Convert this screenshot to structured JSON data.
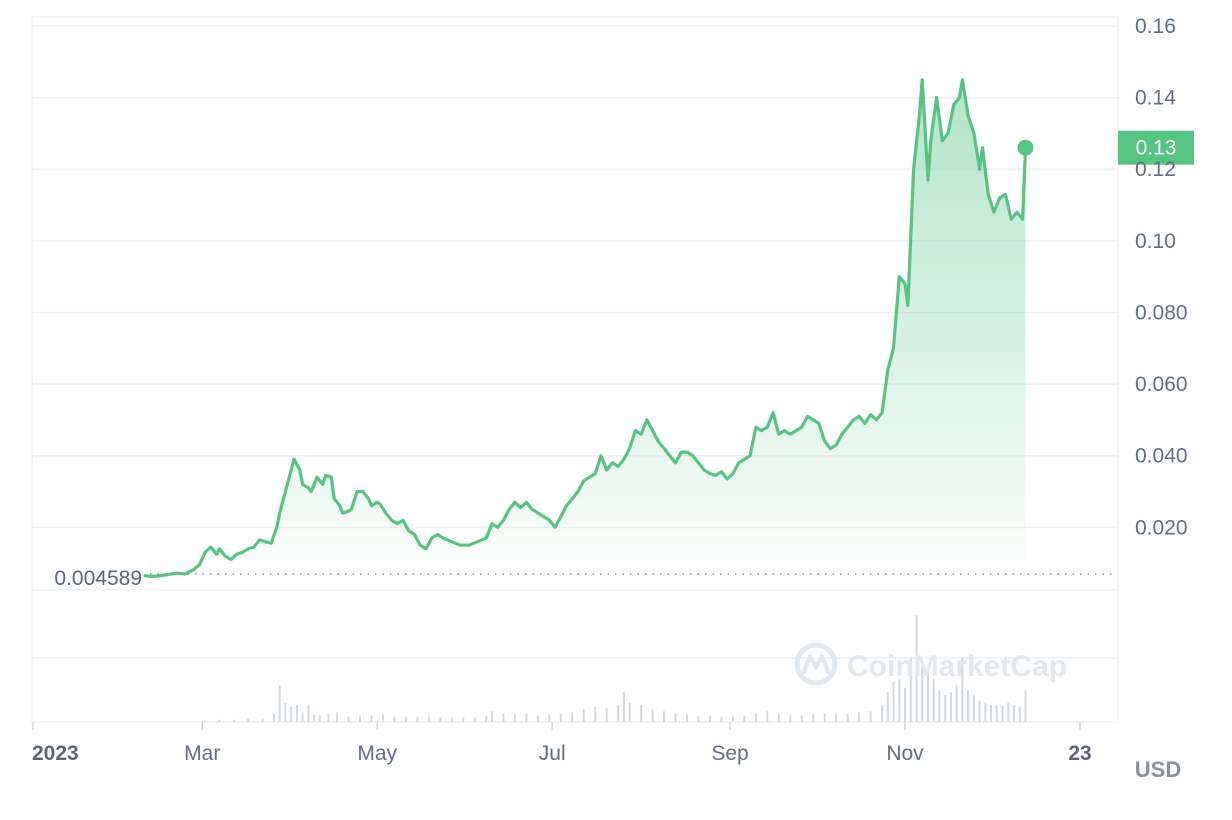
{
  "colors": {
    "line": "#58c483",
    "area_top": "#58c483",
    "grid": "#eff2f5",
    "volume": "#d3d8e0",
    "baseline": "#808a9d",
    "badge": "#58c483"
  },
  "watermark": {
    "text": "CoinMarketCap",
    "icon": "coinmarketcap-logo-icon"
  },
  "chart_data": {
    "type": "area",
    "x_ticks": [
      {
        "label": "2023",
        "day": 0
      },
      {
        "label": "Mar",
        "day": 59
      },
      {
        "label": "May",
        "day": 120
      },
      {
        "label": "Jul",
        "day": 181
      },
      {
        "label": "Sep",
        "day": 243
      },
      {
        "label": "Nov",
        "day": 304
      },
      {
        "label": "23",
        "day": 365
      }
    ],
    "y_ticks": [
      "0.020",
      "0.040",
      "0.060",
      "0.080",
      "0.10",
      "0.12",
      "0.14",
      "0.16"
    ],
    "y_tick_values": [
      0.02,
      0.04,
      0.06,
      0.08,
      0.1,
      0.12,
      0.14,
      0.16
    ],
    "ylim": [
      0.0025,
      0.1625
    ],
    "unit": "USD",
    "start_value_label": "0.004589",
    "current_value_label": "0.13",
    "grid": true,
    "series": [
      {
        "values": [
          [
            39,
            0.0065
          ],
          [
            41,
            0.0063
          ],
          [
            44,
            0.0064
          ],
          [
            47,
            0.0068
          ],
          [
            50,
            0.0072
          ],
          [
            53,
            0.007
          ],
          [
            56,
            0.0082
          ],
          [
            58,
            0.0095
          ],
          [
            60,
            0.013
          ],
          [
            62,
            0.0145
          ],
          [
            64,
            0.0125
          ],
          [
            65,
            0.014
          ],
          [
            67,
            0.012
          ],
          [
            69,
            0.011
          ],
          [
            71,
            0.0125
          ],
          [
            73,
            0.013
          ],
          [
            75,
            0.014
          ],
          [
            77,
            0.0145
          ],
          [
            79,
            0.0165
          ],
          [
            81,
            0.016
          ],
          [
            83,
            0.0155
          ],
          [
            85,
            0.02
          ],
          [
            86,
            0.024
          ],
          [
            88,
            0.03
          ],
          [
            90,
            0.036
          ],
          [
            91,
            0.039
          ],
          [
            93,
            0.036
          ],
          [
            94,
            0.032
          ],
          [
            96,
            0.031
          ],
          [
            97,
            0.03
          ],
          [
            99,
            0.034
          ],
          [
            101,
            0.032
          ],
          [
            102,
            0.0345
          ],
          [
            104,
            0.034
          ],
          [
            105,
            0.028
          ],
          [
            107,
            0.026
          ],
          [
            108,
            0.024
          ],
          [
            110,
            0.0245
          ],
          [
            111,
            0.025
          ],
          [
            113,
            0.03
          ],
          [
            115,
            0.03
          ],
          [
            117,
            0.028
          ],
          [
            118,
            0.026
          ],
          [
            120,
            0.027
          ],
          [
            121,
            0.0265
          ],
          [
            123,
            0.024
          ],
          [
            125,
            0.022
          ],
          [
            127,
            0.021
          ],
          [
            129,
            0.022
          ],
          [
            131,
            0.019
          ],
          [
            133,
            0.018
          ],
          [
            135,
            0.015
          ],
          [
            137,
            0.014
          ],
          [
            139,
            0.017
          ],
          [
            141,
            0.018
          ],
          [
            143,
            0.017
          ],
          [
            146,
            0.016
          ],
          [
            149,
            0.015
          ],
          [
            152,
            0.015
          ],
          [
            155,
            0.016
          ],
          [
            158,
            0.017
          ],
          [
            160,
            0.021
          ],
          [
            162,
            0.02
          ],
          [
            164,
            0.022
          ],
          [
            166,
            0.025
          ],
          [
            168,
            0.027
          ],
          [
            170,
            0.0255
          ],
          [
            172,
            0.027
          ],
          [
            174,
            0.025
          ],
          [
            176,
            0.024
          ],
          [
            178,
            0.023
          ],
          [
            180,
            0.022
          ],
          [
            182,
            0.02
          ],
          [
            184,
            0.023
          ],
          [
            186,
            0.026
          ],
          [
            188,
            0.028
          ],
          [
            190,
            0.03
          ],
          [
            192,
            0.033
          ],
          [
            194,
            0.034
          ],
          [
            196,
            0.035
          ],
          [
            198,
            0.04
          ],
          [
            200,
            0.036
          ],
          [
            202,
            0.038
          ],
          [
            204,
            0.037
          ],
          [
            206,
            0.039
          ],
          [
            208,
            0.042
          ],
          [
            210,
            0.047
          ],
          [
            212,
            0.046
          ],
          [
            214,
            0.05
          ],
          [
            216,
            0.047
          ],
          [
            218,
            0.044
          ],
          [
            220,
            0.042
          ],
          [
            222,
            0.04
          ],
          [
            224,
            0.038
          ],
          [
            226,
            0.041
          ],
          [
            228,
            0.041
          ],
          [
            230,
            0.04
          ],
          [
            232,
            0.038
          ],
          [
            234,
            0.036
          ],
          [
            236,
            0.035
          ],
          [
            238,
            0.0345
          ],
          [
            240,
            0.0355
          ],
          [
            242,
            0.0335
          ],
          [
            244,
            0.035
          ],
          [
            246,
            0.038
          ],
          [
            248,
            0.039
          ],
          [
            250,
            0.04
          ],
          [
            252,
            0.048
          ],
          [
            254,
            0.047
          ],
          [
            256,
            0.048
          ],
          [
            258,
            0.052
          ],
          [
            260,
            0.046
          ],
          [
            262,
            0.047
          ],
          [
            264,
            0.046
          ],
          [
            266,
            0.047
          ],
          [
            268,
            0.048
          ],
          [
            270,
            0.051
          ],
          [
            272,
            0.05
          ],
          [
            274,
            0.049
          ],
          [
            276,
            0.044
          ],
          [
            278,
            0.042
          ],
          [
            280,
            0.043
          ],
          [
            282,
            0.046
          ],
          [
            284,
            0.048
          ],
          [
            286,
            0.05
          ],
          [
            288,
            0.051
          ],
          [
            290,
            0.049
          ],
          [
            292,
            0.0515
          ],
          [
            294,
            0.05
          ],
          [
            296,
            0.052
          ],
          [
            298,
            0.064
          ],
          [
            300,
            0.07
          ],
          [
            302,
            0.09
          ],
          [
            304,
            0.088
          ],
          [
            305,
            0.082
          ],
          [
            307,
            0.12
          ],
          [
            309,
            0.135
          ],
          [
            310,
            0.145
          ],
          [
            312,
            0.117
          ],
          [
            313,
            0.128
          ],
          [
            315,
            0.14
          ],
          [
            317,
            0.128
          ],
          [
            319,
            0.13
          ],
          [
            321,
            0.138
          ],
          [
            323,
            0.14
          ],
          [
            324,
            0.145
          ],
          [
            326,
            0.135
          ],
          [
            328,
            0.13
          ],
          [
            330,
            0.12
          ],
          [
            331,
            0.126
          ],
          [
            333,
            0.113
          ],
          [
            335,
            0.108
          ],
          [
            337,
            0.112
          ],
          [
            339,
            0.113
          ],
          [
            341,
            0.106
          ],
          [
            343,
            0.108
          ],
          [
            345,
            0.106
          ],
          [
            346,
            0.126
          ]
        ]
      }
    ],
    "volume": [
      [
        47,
        0.003
      ],
      [
        60,
        0.01
      ],
      [
        65,
        0.02
      ],
      [
        70,
        0.02
      ],
      [
        75,
        0.03
      ],
      [
        80,
        0.03
      ],
      [
        84,
        0.08
      ],
      [
        86,
        0.34
      ],
      [
        88,
        0.18
      ],
      [
        90,
        0.14
      ],
      [
        92,
        0.16
      ],
      [
        94,
        0.09
      ],
      [
        96,
        0.16
      ],
      [
        98,
        0.07
      ],
      [
        100,
        0.06
      ],
      [
        103,
        0.08
      ],
      [
        106,
        0.09
      ],
      [
        110,
        0.05
      ],
      [
        114,
        0.06
      ],
      [
        118,
        0.06
      ],
      [
        122,
        0.07
      ],
      [
        126,
        0.05
      ],
      [
        130,
        0.05
      ],
      [
        134,
        0.05
      ],
      [
        138,
        0.05
      ],
      [
        142,
        0.04
      ],
      [
        146,
        0.04
      ],
      [
        150,
        0.04
      ],
      [
        154,
        0.04
      ],
      [
        158,
        0.06
      ],
      [
        160,
        0.1
      ],
      [
        164,
        0.08
      ],
      [
        168,
        0.07
      ],
      [
        172,
        0.08
      ],
      [
        176,
        0.06
      ],
      [
        180,
        0.07
      ],
      [
        184,
        0.08
      ],
      [
        188,
        0.09
      ],
      [
        192,
        0.12
      ],
      [
        196,
        0.14
      ],
      [
        200,
        0.13
      ],
      [
        204,
        0.16
      ],
      [
        206,
        0.28
      ],
      [
        208,
        0.18
      ],
      [
        212,
        0.16
      ],
      [
        216,
        0.12
      ],
      [
        220,
        0.1
      ],
      [
        224,
        0.08
      ],
      [
        228,
        0.07
      ],
      [
        232,
        0.06
      ],
      [
        236,
        0.06
      ],
      [
        240,
        0.05
      ],
      [
        244,
        0.05
      ],
      [
        248,
        0.06
      ],
      [
        252,
        0.08
      ],
      [
        256,
        0.1
      ],
      [
        260,
        0.08
      ],
      [
        264,
        0.07
      ],
      [
        268,
        0.06
      ],
      [
        272,
        0.07
      ],
      [
        276,
        0.08
      ],
      [
        280,
        0.07
      ],
      [
        284,
        0.08
      ],
      [
        288,
        0.09
      ],
      [
        292,
        0.1
      ],
      [
        296,
        0.16
      ],
      [
        298,
        0.28
      ],
      [
        300,
        0.38
      ],
      [
        302,
        0.4
      ],
      [
        304,
        0.32
      ],
      [
        306,
        0.6
      ],
      [
        308,
        1.0
      ],
      [
        310,
        0.55
      ],
      [
        312,
        0.45
      ],
      [
        314,
        0.4
      ],
      [
        316,
        0.3
      ],
      [
        318,
        0.25
      ],
      [
        320,
        0.28
      ],
      [
        322,
        0.35
      ],
      [
        324,
        0.6
      ],
      [
        326,
        0.3
      ],
      [
        328,
        0.25
      ],
      [
        330,
        0.2
      ],
      [
        332,
        0.18
      ],
      [
        334,
        0.16
      ],
      [
        336,
        0.16
      ],
      [
        338,
        0.15
      ],
      [
        340,
        0.18
      ],
      [
        342,
        0.16
      ],
      [
        344,
        0.14
      ],
      [
        346,
        0.3
      ]
    ]
  }
}
